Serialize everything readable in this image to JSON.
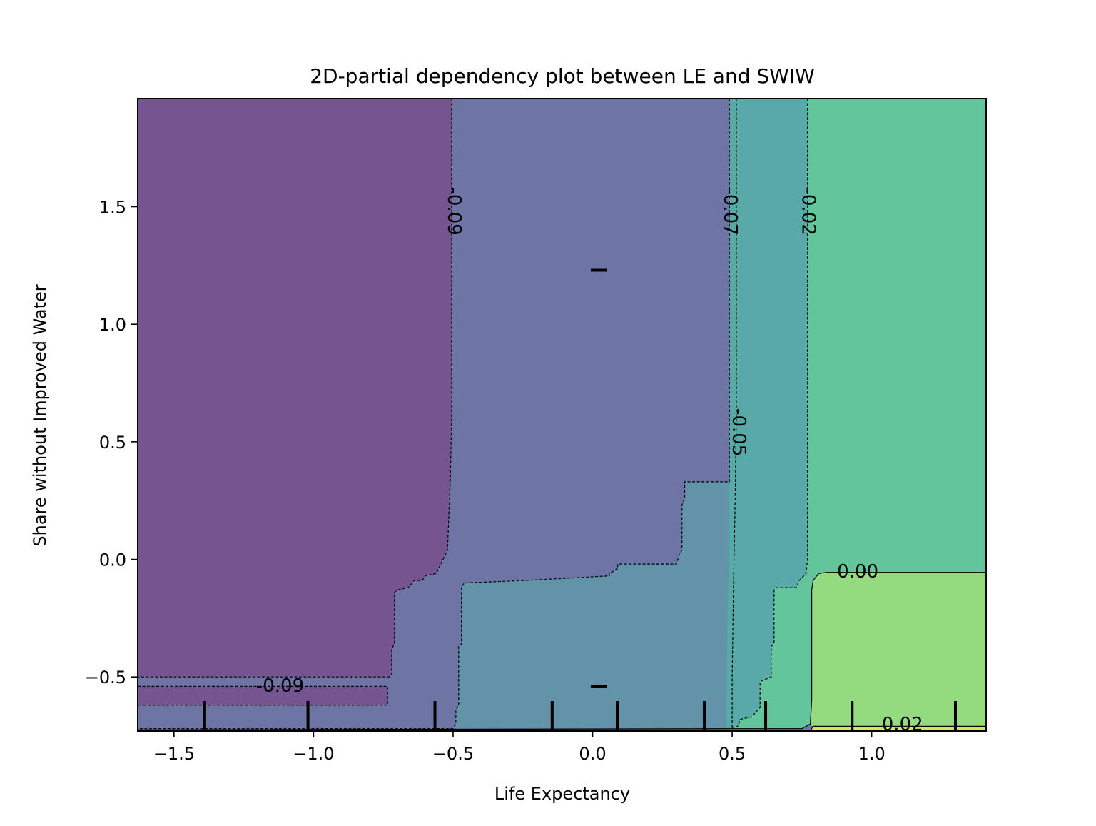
{
  "chart_data": {
    "type": "contour",
    "title": "2D-partial dependency plot between LE and SWIW",
    "xlabel": "Life Expectancy",
    "ylabel": "Share without Improved Water",
    "xlim": [
      -1.63,
      1.41
    ],
    "ylim": [
      -0.73,
      1.96
    ],
    "x_ticks": [
      {
        "value": -1.5,
        "label": "−1.5"
      },
      {
        "value": -1.0,
        "label": "−1.0"
      },
      {
        "value": -0.5,
        "label": "−0.5"
      },
      {
        "value": 0.0,
        "label": "0.0"
      },
      {
        "value": 0.5,
        "label": "0.5"
      },
      {
        "value": 1.0,
        "label": "1.0"
      }
    ],
    "y_ticks": [
      {
        "value": -0.5,
        "label": "−0.5"
      },
      {
        "value": 0.0,
        "label": "0.0"
      },
      {
        "value": 0.5,
        "label": "0.5"
      },
      {
        "value": 1.0,
        "label": "1.0"
      },
      {
        "value": 1.5,
        "label": "1.5"
      }
    ],
    "grid": false,
    "regions": [
      {
        "name": "level-1",
        "color": "#75548f",
        "polygon": [
          [
            -1.63,
            1.96
          ],
          [
            -0.505,
            1.96
          ],
          [
            -0.505,
            0.6
          ],
          [
            -0.51,
            0.34
          ],
          [
            -0.52,
            0.04
          ],
          [
            -0.54,
            -0.01
          ],
          [
            -0.56,
            -0.06
          ],
          [
            -0.6,
            -0.07
          ],
          [
            -0.61,
            -0.09
          ],
          [
            -0.64,
            -0.09
          ],
          [
            -0.66,
            -0.12
          ],
          [
            -0.7,
            -0.13
          ],
          [
            -0.71,
            -0.14
          ],
          [
            -0.71,
            -0.36
          ],
          [
            -0.72,
            -0.38
          ],
          [
            -0.72,
            -0.49
          ],
          [
            -0.73,
            -0.5
          ],
          [
            -1.63,
            -0.5
          ]
        ]
      },
      {
        "name": "level-1b",
        "color": "#75548f",
        "polygon": [
          [
            -1.63,
            -0.54
          ],
          [
            -0.735,
            -0.54
          ],
          [
            -0.735,
            -0.62
          ],
          [
            -1.63,
            -0.62
          ]
        ]
      },
      {
        "name": "level-2",
        "color": "#6e75a5",
        "polygon": [
          [
            -0.505,
            1.96
          ],
          [
            0.49,
            1.96
          ],
          [
            0.49,
            0.33
          ],
          [
            0.33,
            0.33
          ],
          [
            0.33,
            0.26
          ],
          [
            0.32,
            0.23
          ],
          [
            0.32,
            0.04
          ],
          [
            0.31,
            0.02
          ],
          [
            0.3,
            -0.02
          ],
          [
            0.09,
            -0.02
          ],
          [
            0.09,
            -0.04
          ],
          [
            0.06,
            -0.06
          ],
          [
            0.06,
            -0.07
          ],
          [
            -0.09,
            -0.08
          ],
          [
            -0.25,
            -0.09
          ],
          [
            -0.46,
            -0.1
          ],
          [
            -0.47,
            -0.12
          ],
          [
            -0.47,
            -0.36
          ],
          [
            -0.48,
            -0.37
          ],
          [
            -0.48,
            -0.62
          ],
          [
            -0.49,
            -0.64
          ],
          [
            -0.49,
            -0.7
          ],
          [
            -0.5,
            -0.72
          ],
          [
            -1.63,
            -0.72
          ],
          [
            -1.63,
            -0.62
          ],
          [
            -0.735,
            -0.62
          ],
          [
            -0.735,
            -0.54
          ],
          [
            -1.63,
            -0.54
          ],
          [
            -1.63,
            -0.5
          ],
          [
            -0.73,
            -0.5
          ],
          [
            -0.72,
            -0.49
          ],
          [
            -0.72,
            -0.38
          ],
          [
            -0.71,
            -0.36
          ],
          [
            -0.71,
            -0.14
          ],
          [
            -0.7,
            -0.13
          ],
          [
            -0.66,
            -0.12
          ],
          [
            -0.64,
            -0.09
          ],
          [
            -0.61,
            -0.09
          ],
          [
            -0.6,
            -0.07
          ],
          [
            -0.56,
            -0.06
          ],
          [
            -0.54,
            -0.01
          ],
          [
            -0.52,
            0.04
          ],
          [
            -0.51,
            0.34
          ],
          [
            -0.505,
            0.6
          ]
        ]
      },
      {
        "name": "level-3",
        "color": "#6293a9",
        "polygon": [
          [
            0.49,
            0.33
          ],
          [
            0.33,
            0.33
          ],
          [
            0.33,
            0.26
          ],
          [
            0.32,
            0.23
          ],
          [
            0.32,
            0.04
          ],
          [
            0.31,
            0.02
          ],
          [
            0.3,
            -0.02
          ],
          [
            0.09,
            -0.02
          ],
          [
            0.09,
            -0.04
          ],
          [
            0.06,
            -0.06
          ],
          [
            0.06,
            -0.07
          ],
          [
            -0.09,
            -0.08
          ],
          [
            -0.25,
            -0.09
          ],
          [
            -0.46,
            -0.1
          ],
          [
            -0.47,
            -0.12
          ],
          [
            -0.47,
            -0.36
          ],
          [
            -0.48,
            -0.37
          ],
          [
            -0.48,
            -0.62
          ],
          [
            -0.49,
            -0.64
          ],
          [
            -0.49,
            -0.7
          ],
          [
            -0.5,
            -0.72
          ],
          [
            0.48,
            -0.72
          ],
          [
            0.48,
            -0.6
          ],
          [
            0.485,
            -0.2
          ],
          [
            0.49,
            0.0
          ]
        ]
      },
      {
        "name": "level-4",
        "color": "#57aaa7",
        "polygon": [
          [
            0.49,
            1.96
          ],
          [
            0.77,
            1.96
          ],
          [
            0.77,
            0.0
          ],
          [
            0.765,
            -0.06
          ],
          [
            0.74,
            -0.09
          ],
          [
            0.73,
            -0.12
          ],
          [
            0.66,
            -0.12
          ],
          [
            0.65,
            -0.13
          ],
          [
            0.65,
            -0.36
          ],
          [
            0.64,
            -0.37
          ],
          [
            0.64,
            -0.5
          ],
          [
            0.62,
            -0.51
          ],
          [
            0.6,
            -0.52
          ],
          [
            0.6,
            -0.63
          ],
          [
            0.57,
            -0.67
          ],
          [
            0.53,
            -0.68
          ],
          [
            0.52,
            -0.71
          ],
          [
            0.5,
            -0.72
          ],
          [
            0.48,
            -0.72
          ],
          [
            0.48,
            -0.6
          ],
          [
            0.485,
            -0.2
          ],
          [
            0.49,
            0.0
          ]
        ]
      },
      {
        "name": "level-5",
        "color": "#62c59b",
        "polygon": [
          [
            0.77,
            1.96
          ],
          [
            1.41,
            1.96
          ],
          [
            1.41,
            -0.055
          ],
          [
            0.84,
            -0.055
          ],
          [
            0.81,
            -0.06
          ],
          [
            0.79,
            -0.09
          ],
          [
            0.785,
            -0.13
          ],
          [
            0.785,
            -0.6
          ],
          [
            0.78,
            -0.7
          ],
          [
            0.75,
            -0.72
          ],
          [
            0.5,
            -0.72
          ],
          [
            0.52,
            -0.71
          ],
          [
            0.53,
            -0.68
          ],
          [
            0.57,
            -0.67
          ],
          [
            0.6,
            -0.63
          ],
          [
            0.6,
            -0.52
          ],
          [
            0.62,
            -0.51
          ],
          [
            0.64,
            -0.5
          ],
          [
            0.64,
            -0.37
          ],
          [
            0.65,
            -0.36
          ],
          [
            0.65,
            -0.13
          ],
          [
            0.66,
            -0.12
          ],
          [
            0.73,
            -0.12
          ],
          [
            0.74,
            -0.09
          ],
          [
            0.765,
            -0.06
          ],
          [
            0.77,
            0.0
          ]
        ]
      },
      {
        "name": "level-6",
        "color": "#94db7f",
        "polygon": [
          [
            1.41,
            -0.055
          ],
          [
            0.84,
            -0.055
          ],
          [
            0.81,
            -0.06
          ],
          [
            0.79,
            -0.09
          ],
          [
            0.785,
            -0.13
          ],
          [
            0.785,
            -0.6
          ],
          [
            0.78,
            -0.7
          ],
          [
            0.79,
            -0.71
          ],
          [
            0.83,
            -0.71
          ],
          [
            1.41,
            -0.71
          ]
        ]
      },
      {
        "name": "level-7",
        "color": "#d6e64e",
        "polygon": [
          [
            0.79,
            -0.71
          ],
          [
            1.41,
            -0.71
          ],
          [
            1.41,
            -0.73
          ],
          [
            0.78,
            -0.73
          ]
        ]
      },
      {
        "name": "level-0-strip",
        "color": "#6e75a5",
        "polygon": [
          [
            -1.63,
            -0.72
          ],
          [
            0.75,
            -0.72
          ],
          [
            0.78,
            -0.73
          ],
          [
            -1.63,
            -0.73
          ]
        ]
      }
    ],
    "contour_lines": [
      {
        "name": "contour-minus-0.09",
        "style": "dashed",
        "points": [
          [
            -0.505,
            1.96
          ],
          [
            -0.505,
            0.6
          ],
          [
            -0.51,
            0.34
          ],
          [
            -0.52,
            0.04
          ],
          [
            -0.54,
            -0.01
          ],
          [
            -0.56,
            -0.06
          ],
          [
            -0.6,
            -0.07
          ],
          [
            -0.61,
            -0.09
          ],
          [
            -0.64,
            -0.09
          ],
          [
            -0.66,
            -0.12
          ],
          [
            -0.7,
            -0.13
          ],
          [
            -0.71,
            -0.14
          ],
          [
            -0.71,
            -0.36
          ],
          [
            -0.72,
            -0.38
          ],
          [
            -0.72,
            -0.49
          ],
          [
            -0.73,
            -0.5
          ],
          [
            -1.63,
            -0.5
          ]
        ]
      },
      {
        "name": "contour-minus-0.09-box",
        "style": "dashed",
        "points": [
          [
            -1.63,
            -0.54
          ],
          [
            -0.735,
            -0.54
          ],
          [
            -0.735,
            -0.62
          ],
          [
            -1.63,
            -0.62
          ]
        ]
      },
      {
        "name": "contour-minus-0.07",
        "style": "dashed",
        "points": [
          [
            0.49,
            1.96
          ],
          [
            0.49,
            0.33
          ],
          [
            0.33,
            0.33
          ],
          [
            0.33,
            0.26
          ],
          [
            0.32,
            0.23
          ],
          [
            0.32,
            0.04
          ],
          [
            0.31,
            0.02
          ],
          [
            0.3,
            -0.02
          ],
          [
            0.09,
            -0.02
          ],
          [
            0.09,
            -0.04
          ],
          [
            0.06,
            -0.06
          ],
          [
            0.06,
            -0.07
          ],
          [
            -0.09,
            -0.08
          ],
          [
            -0.25,
            -0.09
          ],
          [
            -0.46,
            -0.1
          ],
          [
            -0.47,
            -0.12
          ],
          [
            -0.47,
            -0.36
          ],
          [
            -0.48,
            -0.37
          ],
          [
            -0.48,
            -0.62
          ],
          [
            -0.49,
            -0.64
          ],
          [
            -0.49,
            -0.7
          ],
          [
            -0.5,
            -0.72
          ],
          [
            -1.63,
            -0.72
          ]
        ]
      },
      {
        "name": "contour-minus-0.05",
        "style": "dashed",
        "points": [
          [
            0.515,
            1.96
          ],
          [
            0.515,
            0.6
          ],
          [
            0.51,
            0.2
          ],
          [
            0.505,
            -0.1
          ],
          [
            0.5,
            -0.5
          ],
          [
            0.5,
            -0.72
          ]
        ]
      },
      {
        "name": "contour-minus-0.02",
        "style": "dashed",
        "points": [
          [
            0.77,
            1.96
          ],
          [
            0.77,
            0.0
          ],
          [
            0.765,
            -0.06
          ],
          [
            0.74,
            -0.09
          ],
          [
            0.73,
            -0.12
          ],
          [
            0.66,
            -0.12
          ],
          [
            0.65,
            -0.13
          ],
          [
            0.65,
            -0.36
          ],
          [
            0.64,
            -0.37
          ],
          [
            0.64,
            -0.5
          ],
          [
            0.62,
            -0.51
          ],
          [
            0.6,
            -0.52
          ],
          [
            0.6,
            -0.63
          ],
          [
            0.57,
            -0.67
          ],
          [
            0.53,
            -0.68
          ],
          [
            0.52,
            -0.71
          ],
          [
            0.5,
            -0.72
          ]
        ]
      },
      {
        "name": "contour-0.00",
        "style": "solid",
        "points": [
          [
            1.41,
            -0.055
          ],
          [
            0.84,
            -0.055
          ],
          [
            0.81,
            -0.06
          ],
          [
            0.79,
            -0.09
          ],
          [
            0.785,
            -0.13
          ],
          [
            0.785,
            -0.6
          ],
          [
            0.78,
            -0.7
          ],
          [
            0.75,
            -0.72
          ],
          [
            0.5,
            -0.72
          ],
          [
            -1.63,
            -0.725
          ]
        ]
      },
      {
        "name": "contour-0.02",
        "style": "solid",
        "points": [
          [
            1.41,
            -0.71
          ],
          [
            0.83,
            -0.71
          ],
          [
            0.79,
            -0.71
          ],
          [
            0.78,
            -0.73
          ]
        ]
      }
    ],
    "contour_labels": [
      {
        "text": "-0.09",
        "x": -0.495,
        "y": 1.48,
        "rotation": 90
      },
      {
        "text": "-0.07",
        "x": 0.495,
        "y": 1.48,
        "rotation": 90
      },
      {
        "text": "-0.02",
        "x": 0.775,
        "y": 1.48,
        "rotation": 90
      },
      {
        "text": "-0.05",
        "x": 0.525,
        "y": 0.54,
        "rotation": 90
      },
      {
        "text": "0.00",
        "x": 0.95,
        "y": -0.05,
        "rotation": 0
      },
      {
        "text": "-0.09",
        "x": -1.12,
        "y": -0.535,
        "rotation": 0
      },
      {
        "text": "0.02",
        "x": 1.11,
        "y": -0.7,
        "rotation": 0
      }
    ],
    "x_deciles": [
      -1.39,
      -1.02,
      -0.565,
      -0.145,
      0.09,
      0.4,
      0.62,
      0.93,
      1.3
    ],
    "y_deciles": [
      1.23,
      -0.54
    ]
  }
}
